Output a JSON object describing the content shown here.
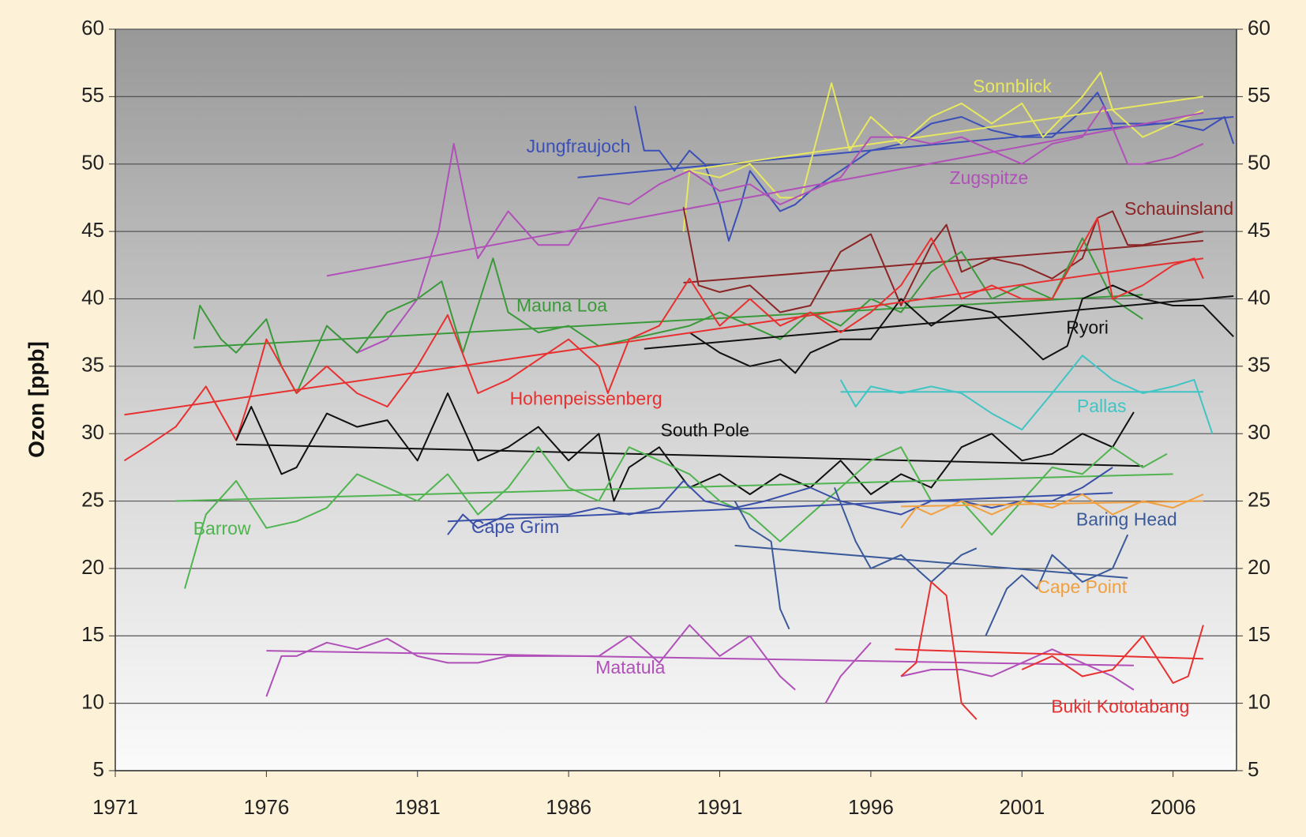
{
  "chart_data": {
    "type": "line",
    "y_label": "Ozon [ppb]",
    "xlim": [
      1971,
      2008.1
    ],
    "xticks": [
      1971,
      1976,
      1981,
      1986,
      1991,
      1996,
      2001,
      2006
    ],
    "ylim": [
      5,
      60
    ],
    "yticks": [
      5,
      10,
      15,
      20,
      25,
      30,
      35,
      40,
      45,
      50,
      55,
      60
    ],
    "right_axis": true,
    "grid": true,
    "series": [
      {
        "name": "Jungfraujoch",
        "color": "#3a4fb8",
        "x": [
          1988.2,
          1988.5,
          1989,
          1989.5,
          1990,
          1990.5,
          1991,
          1991.3,
          1991.7,
          1992,
          1992.5,
          1993,
          1993.5,
          1994,
          1995,
          1996,
          1997,
          1998,
          1999,
          2000,
          2001,
          2002,
          2003,
          2003.5,
          2004,
          2005,
          2006,
          2007,
          2007.7,
          2008
        ],
        "values": [
          54.3,
          51,
          51,
          49.5,
          51,
          50,
          47,
          44.3,
          47,
          49.5,
          48,
          46.5,
          47,
          48,
          49.5,
          51,
          51.5,
          53,
          53.5,
          52.5,
          52,
          52,
          54,
          55.3,
          53,
          53,
          53,
          52.5,
          53.5,
          51.5
        ],
        "trend": {
          "x": [
            1986.3,
            2008
          ],
          "values": [
            49,
            53.5
          ]
        }
      },
      {
        "name": "Sonnblick",
        "color": "#e8e860",
        "x": [
          1989.8,
          1990,
          1991,
          1992,
          1993,
          1993.7,
          1994.7,
          1995.3,
          1996,
          1997,
          1998,
          1999,
          2000,
          2001,
          2001.7,
          2003,
          2003.6,
          2004,
          2005,
          2006,
          2007
        ],
        "values": [
          45,
          49.5,
          49,
          50,
          47.5,
          47.5,
          56,
          51,
          53.5,
          51.5,
          53.5,
          54.5,
          53,
          54.5,
          52,
          55,
          56.8,
          54,
          52,
          53,
          54
        ],
        "trend": {
          "x": [
            1989.8,
            2007
          ],
          "values": [
            49.5,
            55
          ]
        }
      },
      {
        "name": "Zugspitze",
        "color": "#b050b8",
        "x": [
          1978,
          1979,
          1980,
          1981,
          1981.7,
          1982.2,
          1982.7,
          1983,
          1984,
          1985,
          1986,
          1987,
          1988,
          1989,
          1990,
          1991,
          1992,
          1993,
          1994,
          1995,
          1996,
          1997,
          1998,
          1999,
          2000,
          2001,
          2002,
          2003,
          2003.7,
          2004.5,
          2005,
          2006,
          2007
        ],
        "values": [
          38,
          36,
          37,
          40,
          45,
          51.5,
          46,
          43,
          46.5,
          44,
          44,
          47.5,
          47,
          48.5,
          49.5,
          48,
          48.5,
          47,
          48,
          49,
          52,
          52,
          51.5,
          52,
          51,
          50,
          51.5,
          52,
          54.3,
          50,
          50,
          50.5,
          51.5
        ],
        "trend": {
          "x": [
            1978,
            2007
          ],
          "values": [
            41.7,
            53.8
          ]
        }
      },
      {
        "name": "Schauinsland",
        "color": "#8b2424",
        "x": [
          1989.8,
          1990.3,
          1991,
          1992,
          1993,
          1994,
          1995,
          1996,
          1997,
          1998,
          1998.5,
          1999,
          2000,
          2001,
          2002,
          2003,
          2003.5,
          2004,
          2004.5,
          2005,
          2006,
          2007
        ],
        "values": [
          46.8,
          41,
          40.5,
          41,
          39,
          39.5,
          43.5,
          44.8,
          39.5,
          44,
          45.5,
          42,
          43,
          42.5,
          41.5,
          43,
          46,
          46.5,
          44,
          44,
          44.5,
          45
        ],
        "trend": {
          "x": [
            1989.8,
            2007
          ],
          "values": [
            41.2,
            44.3
          ]
        }
      },
      {
        "name": "Mauna Loa",
        "color": "#3a9a3a",
        "x": [
          1973.6,
          1973.8,
          1974.5,
          1975,
          1976,
          1976.5,
          1977,
          1978,
          1979,
          1980,
          1981,
          1981.8,
          1982.5,
          1983.5,
          1984,
          1985,
          1986,
          1987,
          1988,
          1989,
          1990,
          1991,
          1992,
          1993,
          1994,
          1995,
          1996,
          1997,
          1998,
          1999,
          2000,
          2001,
          2002,
          2003,
          2004,
          2005
        ],
        "values": [
          37,
          39.5,
          37,
          36,
          38.5,
          35,
          33,
          38,
          36,
          39,
          40,
          41.3,
          36,
          43,
          39,
          37.5,
          38,
          36.5,
          37,
          37.5,
          38,
          39,
          38,
          37,
          39,
          38,
          40,
          39,
          42,
          43.5,
          40,
          41,
          40,
          44.5,
          40,
          38.5
        ],
        "trend": {
          "x": [
            1973.6,
            2005
          ],
          "values": [
            36.4,
            40.3
          ]
        }
      },
      {
        "name": "Ryori",
        "color": "#111111",
        "x": [
          1990,
          1991,
          1992,
          1993,
          1993.5,
          1994,
          1995,
          1996,
          1997,
          1998,
          1999,
          2000,
          2001,
          2001.7,
          2002.5,
          2003,
          2004,
          2005,
          2006,
          2007,
          2008
        ],
        "values": [
          37.5,
          36,
          35,
          35.5,
          34.5,
          36,
          37,
          37,
          40,
          38,
          39.5,
          39,
          37,
          35.5,
          36.5,
          40,
          41,
          40,
          39.5,
          39.5,
          37.2
        ],
        "trend": {
          "x": [
            1988.5,
            2008
          ],
          "values": [
            36.3,
            40.2
          ]
        }
      },
      {
        "name": "Hohenpeissenberg",
        "color": "#e83030",
        "x": [
          1971.3,
          1972,
          1973,
          1974,
          1975,
          1975.5,
          1976,
          1977,
          1978,
          1979,
          1980,
          1981,
          1982,
          1983,
          1984,
          1985,
          1986,
          1987,
          1987.3,
          1988,
          1989,
          1990,
          1991,
          1992,
          1993,
          1994,
          1995,
          1996,
          1997,
          1998,
          1999,
          2000,
          2001,
          2002,
          2003,
          2003.5,
          2004,
          2005,
          2006,
          2006.7,
          2007
        ],
        "values": [
          28,
          29,
          30.5,
          33.5,
          29.5,
          33,
          37,
          33,
          35,
          33,
          32,
          35,
          38.8,
          33,
          34,
          35.5,
          37,
          35,
          33,
          37,
          38,
          41.5,
          38,
          40,
          38,
          39,
          37.5,
          39,
          41,
          44.5,
          40,
          41,
          40,
          40,
          44,
          46,
          40,
          41,
          42.5,
          43,
          41.5
        ],
        "trend": {
          "x": [
            1971.3,
            2007
          ],
          "values": [
            31.4,
            43
          ]
        }
      },
      {
        "name": "Pallas",
        "color": "#40c4c4",
        "x": [
          1995,
          1995.5,
          1996,
          1997,
          1998,
          1999,
          2000,
          2001,
          2002,
          2003,
          2004,
          2005,
          2006,
          2006.7,
          2007.3
        ],
        "values": [
          34,
          32,
          33.5,
          33,
          33.5,
          33,
          31.5,
          30.3,
          33,
          35.8,
          34,
          33,
          33.5,
          34,
          30
        ],
        "trend": {
          "x": [
            1995,
            2007
          ],
          "values": [
            33.1,
            33.1
          ]
        }
      },
      {
        "name": "South Pole",
        "color": "#111111",
        "x": [
          1975,
          1975.5,
          1976,
          1976.5,
          1977,
          1978,
          1979,
          1980,
          1981,
          1982,
          1983,
          1984,
          1985,
          1986,
          1987,
          1987.5,
          1988,
          1989,
          1990,
          1991,
          1992,
          1993,
          1994,
          1995,
          1996,
          1997,
          1998,
          1999,
          2000,
          2001,
          2002,
          2003,
          2004,
          2004.7
        ],
        "values": [
          29.5,
          32,
          29.5,
          27,
          27.5,
          31.5,
          30.5,
          31,
          28,
          33,
          28,
          29,
          30.5,
          28,
          30,
          25,
          27.5,
          29,
          26,
          27,
          25.5,
          27,
          26,
          28,
          25.5,
          27,
          26,
          29,
          30,
          28,
          28.5,
          30,
          29,
          31.6
        ],
        "trend": {
          "x": [
            1975,
            2005
          ],
          "values": [
            29.2,
            27.6
          ]
        }
      },
      {
        "name": "Barrow",
        "color": "#50b450",
        "x": [
          1973.3,
          1974,
          1975,
          1976,
          1977,
          1978,
          1979,
          1980,
          1981,
          1982,
          1983,
          1984,
          1985,
          1986,
          1987,
          1988,
          1989,
          1990,
          1991,
          1992,
          1993,
          1994,
          1995,
          1996,
          1997,
          1998,
          1999,
          2000,
          2001,
          2002,
          2003,
          2004,
          2005,
          2005.8
        ],
        "values": [
          18.5,
          24,
          26.5,
          23,
          23.5,
          24.5,
          27,
          26,
          25,
          27,
          24,
          26,
          29,
          26,
          25,
          29,
          28,
          27,
          25,
          24,
          22,
          24,
          26,
          28,
          29,
          25,
          25,
          22.5,
          25,
          27.5,
          27,
          29,
          27.5,
          28.5
        ],
        "trend": {
          "x": [
            1973,
            2006
          ],
          "values": [
            25,
            27
          ]
        }
      },
      {
        "name": "Cape Grim",
        "color": "#3a50a8",
        "x": [
          1982,
          1982.5,
          1983,
          1984,
          1985,
          1986,
          1987,
          1988,
          1989,
          1989.8,
          1990.5,
          1991.5,
          1992.5,
          1994,
          1995,
          1997,
          1998,
          1999,
          2000,
          2001,
          2002,
          2003,
          2004
        ],
        "values": [
          22.5,
          24,
          23,
          24,
          24,
          24,
          24.5,
          24,
          24.5,
          26.5,
          25,
          24.5,
          25,
          26,
          25,
          24,
          25,
          25,
          24.5,
          25,
          25,
          26,
          27.5
        ],
        "trend": {
          "x": [
            1982,
            2004
          ],
          "values": [
            23.5,
            25.6
          ]
        }
      },
      {
        "name": "Baring Head",
        "color": "#3a5a9a",
        "x": [
          1991.5,
          1992,
          1992.7,
          1993,
          1993.3,
          1994,
          1994.8,
          1995.5,
          1996,
          1997,
          1998,
          1999,
          1999.5,
          1999.7,
          1999.8,
          2000.5,
          2001,
          2001.5,
          2002,
          2003,
          2004,
          2004.5
        ],
        "values": [
          25,
          23,
          22,
          17,
          15.5,
          null,
          26,
          22,
          20,
          21,
          19,
          21,
          21.5,
          null,
          15,
          18.5,
          19.5,
          18.5,
          21,
          19,
          20,
          22.5
        ],
        "trend": {
          "x": [
            1991.5,
            2004.5
          ],
          "values": [
            21.7,
            19.3
          ]
        }
      },
      {
        "name": "Cape Point",
        "color": "#f0a040",
        "x": [
          1997,
          1997.5,
          1998,
          1999,
          2000,
          2001,
          2002,
          2003,
          2004,
          2005,
          2006,
          2007
        ],
        "values": [
          23,
          24.5,
          24,
          25,
          24,
          25,
          24.5,
          25.5,
          24,
          25,
          24.5,
          25.5
        ],
        "trend": {
          "x": [
            1997,
            2007
          ],
          "values": [
            24.6,
            25
          ]
        }
      },
      {
        "name": "Matatula",
        "color": "#b050b8",
        "x": [
          1976,
          1976.5,
          1977,
          1978,
          1979,
          1980,
          1981,
          1982,
          1983,
          1984,
          1985,
          1986,
          1987,
          1988,
          1989,
          1990,
          1991,
          1992,
          1993,
          1993.5,
          1994,
          1994.5,
          1995,
          1996,
          1996.5,
          1997,
          1998,
          1999,
          2000,
          2001,
          2002,
          2003,
          2004,
          2004.7
        ],
        "values": [
          10.5,
          13.5,
          13.5,
          14.5,
          14,
          14.8,
          13.5,
          13,
          13,
          13.5,
          13.5,
          13.5,
          13.5,
          15,
          13,
          15.8,
          13.5,
          15,
          12,
          11,
          null,
          10,
          12,
          14.5,
          null,
          12,
          12.5,
          12.5,
          12,
          13,
          14,
          13,
          12,
          11
        ],
        "trend": {
          "x": [
            1976,
            2004.7
          ],
          "values": [
            13.9,
            12.8
          ]
        }
      },
      {
        "name": "Bukit Kototabang",
        "color": "#e83030",
        "x": [
          1997,
          1997.5,
          1998,
          1998.5,
          1999,
          1999.5,
          2000,
          2001,
          2002,
          2003,
          2004,
          2005,
          2006,
          2006.5,
          2007
        ],
        "values": [
          12,
          13,
          19,
          18,
          10,
          8.8,
          null,
          12.5,
          13.5,
          12,
          12.5,
          15,
          11.5,
          12,
          15.8
        ],
        "trend": {
          "x": [
            1996.8,
            2007
          ],
          "values": [
            14,
            13.3
          ]
        }
      }
    ]
  }
}
